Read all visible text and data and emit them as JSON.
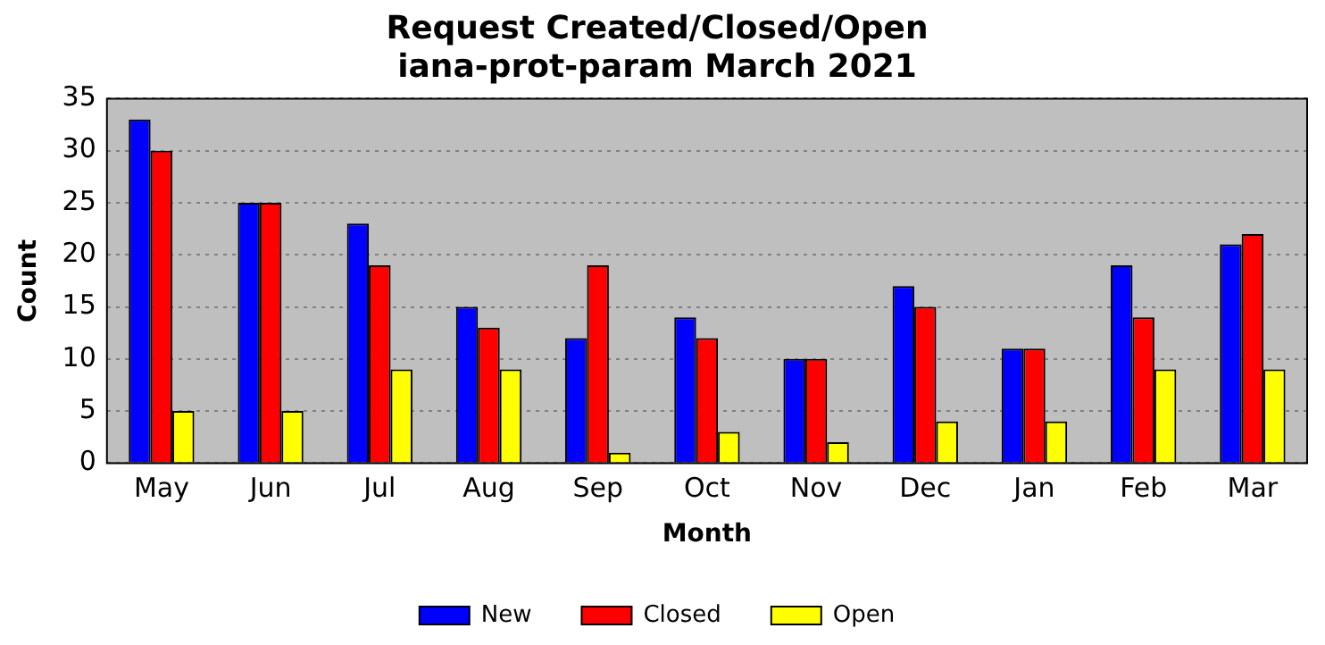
{
  "chart_data": {
    "type": "bar",
    "title": "Request Created/Closed/Open",
    "subtitle": "iana-prot-param March 2021",
    "xlabel": "Month",
    "ylabel": "Count",
    "categories": [
      "May",
      "Jun",
      "Jul",
      "Aug",
      "Sep",
      "Oct",
      "Nov",
      "Dec",
      "Jan",
      "Feb",
      "Mar"
    ],
    "series": [
      {
        "name": "New",
        "color": "#0000ff",
        "values": [
          33,
          25,
          23,
          15,
          12,
          14,
          10,
          17,
          11,
          19,
          21
        ]
      },
      {
        "name": "Closed",
        "color": "#ff0000",
        "values": [
          30,
          25,
          19,
          13,
          19,
          12,
          10,
          15,
          11,
          14,
          22
        ]
      },
      {
        "name": "Open",
        "color": "#ffff00",
        "values": [
          5,
          5,
          9,
          9,
          1,
          3,
          2,
          4,
          4,
          9,
          9
        ]
      }
    ],
    "ylim": [
      0,
      35
    ],
    "yticks": [
      0,
      5,
      10,
      15,
      20,
      25,
      30,
      35
    ],
    "grid": "y",
    "legend": "bottom"
  }
}
